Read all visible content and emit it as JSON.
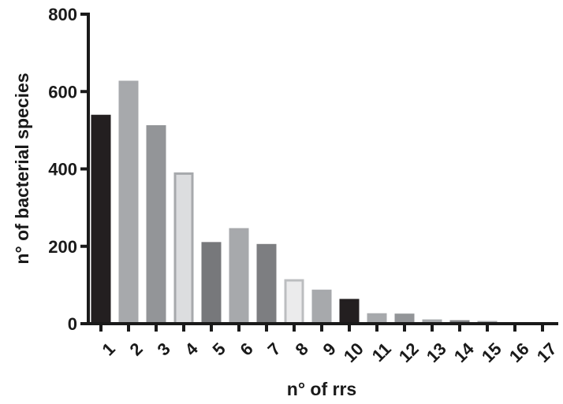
{
  "chart_data": {
    "type": "bar",
    "title": "",
    "xlabel": "n° of rrs",
    "ylabel": "n° of bacterial species",
    "categories": [
      "1",
      "2",
      "3",
      "4",
      "5",
      "6",
      "7",
      "8",
      "9",
      "10",
      "11",
      "12",
      "13",
      "14",
      "15",
      "16",
      "17"
    ],
    "values": [
      540,
      628,
      513,
      391,
      211,
      247,
      206,
      115,
      88,
      64,
      27,
      26,
      11,
      9,
      7,
      4,
      3
    ],
    "ylim": [
      0,
      800
    ],
    "yticks": [
      "0",
      "200",
      "400",
      "600",
      "800"
    ],
    "grid": false,
    "legend": "none",
    "colors": {
      "fills": [
        "#231f20",
        "#a7a9ac",
        "#939598",
        "#dcdddf",
        "#77787b",
        "#a7a9ac",
        "#7d7e81",
        "#ebebec",
        "#a7a9ac",
        "#231f20",
        "#a7a9ac",
        "#939598",
        "#a7a9ac",
        "#808285",
        "#a7a9ac",
        "#939598",
        "#a7a9ac"
      ],
      "outlines": [
        "#231f20",
        "#a7a9ac",
        "#939598",
        "#a7a9ac",
        "#77787b",
        "#a7a9ac",
        "#7d7e81",
        "#bcbec0",
        "#a7a9ac",
        "#231f20",
        "#a7a9ac",
        "#939598",
        "#a7a9ac",
        "#808285",
        "#a7a9ac",
        "#939598",
        "#a7a9ac"
      ],
      "axis": "#1a1a1a"
    }
  }
}
